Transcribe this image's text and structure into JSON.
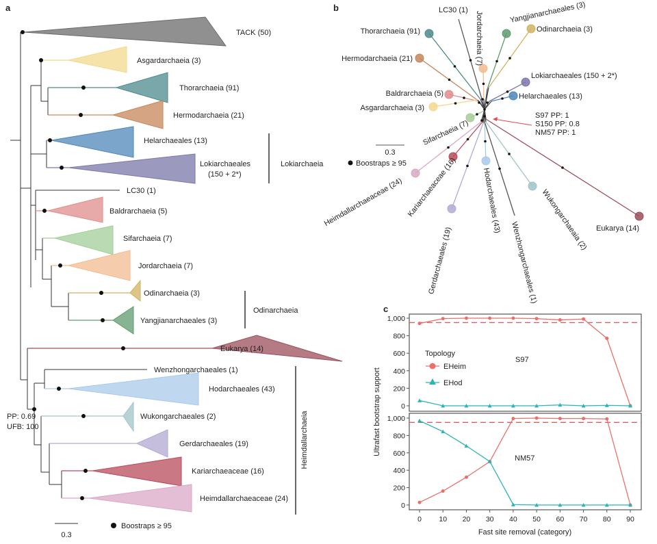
{
  "panel_a": {
    "letter": "a",
    "clades": [
      {
        "label": "TACK (50)",
        "color": "#6b6b6b"
      },
      {
        "label": "Asgardarchaeia (3)",
        "color": "#f2d98e"
      },
      {
        "label": "Thorarchaeia (91)",
        "color": "#4e8a8c"
      },
      {
        "label": "Hermodarchaeia (21)",
        "color": "#c6865a"
      },
      {
        "label": "Helarchaeales (13)",
        "color": "#4f87b9"
      },
      {
        "label": "Lokiarchaeales",
        "label2": "(150 + 2*)",
        "color": "#7b77a9"
      },
      {
        "label": "Baldrarchaeia (5)",
        "color": "#e08c8c"
      },
      {
        "label": "Sifarchaeia (7)",
        "color": "#a3cd99"
      },
      {
        "label": "Jordarchaeia (7)",
        "color": "#f1bc90"
      },
      {
        "label": "Odinarchaeia (3)",
        "color": "#d2b263"
      },
      {
        "label": "Yangjianarchaeales (3)",
        "color": "#5f9b6d"
      },
      {
        "label": "Eukarya (14)",
        "color": "#9c4f5b"
      },
      {
        "label": "Hodarchaeales (43)",
        "color": "#a9c9ea"
      },
      {
        "label": "Wukongarchaeales (2)",
        "color": "#a0c4c7"
      },
      {
        "label": "Gerdarchaeales (19)",
        "color": "#b2aad2"
      },
      {
        "label": "Kariarchaeaceae (16)",
        "color": "#b84b5b"
      },
      {
        "label": "Heimdallarchaeaceae (24)",
        "color": "#d9a8c6"
      }
    ],
    "singletons": [
      "LC30 (1)",
      "Wenzhongarchaeales (1)"
    ],
    "brackets": [
      "Lokiarchaeia",
      "Odinarchaeia",
      "Heimdallarchaeia"
    ],
    "node_support": [
      "PP: 0.69",
      "UFB: 100"
    ],
    "scale": "0.3",
    "legend": "Boostraps ≥ 95"
  },
  "panel_b": {
    "letter": "b",
    "tips": [
      {
        "label": "Thorarchaeia (91)",
        "color": "#4e8a8c"
      },
      {
        "label": "Hermodarchaeia (21)",
        "color": "#c6865a"
      },
      {
        "label": "LC30 (1)",
        "color": "#555555"
      },
      {
        "label": "Jordarchaeia (7)",
        "color": "#f1bc90"
      },
      {
        "label": "Yangjianarchaeales (3)",
        "color": "#5f9b6d"
      },
      {
        "label": "Odinarchaeia (3)",
        "color": "#d2b263"
      },
      {
        "label": "Lokiarchaeales (150 + 2*)",
        "color": "#7b77a9"
      },
      {
        "label": "Helarchaeales (13)",
        "color": "#4f87b9"
      },
      {
        "label": "Baldrarchaeia (5)",
        "color": "#e08c8c"
      },
      {
        "label": "Asgardarchaeia (3)",
        "color": "#f2d98e"
      },
      {
        "label": "Sifarchaeia (7)",
        "color": "#a3cd99"
      },
      {
        "label": "Heimdallarchaeaceae (24)",
        "color": "#d9a8c6"
      },
      {
        "label": "Kariarchaeaceae (16)",
        "color": "#b84b5b"
      },
      {
        "label": "Gerdarchaeales (19)",
        "color": "#b2aad2"
      },
      {
        "label": "Hodarchaeales (43)",
        "color": "#a9c9ea"
      },
      {
        "label": "Wenzhongarchaeales (1)",
        "color": "#555555"
      },
      {
        "label": "Wukongarchaeaia (2)",
        "color": "#a0c4c7"
      },
      {
        "label": "Eukarya (14)",
        "color": "#9c4f5b"
      }
    ],
    "annotation": [
      "S97    PP: 1",
      "S150  PP: 0.8",
      "NM57 PP: 1"
    ],
    "scale": "0.3",
    "legend": "Boostraps ≥ 95"
  },
  "chart_data": {
    "type": "line",
    "letter": "c",
    "xlabel": "Fast site removal (category)",
    "ylabel": "Ultrafast bootstrap support",
    "x": [
      0,
      10,
      20,
      30,
      40,
      50,
      60,
      70,
      80,
      90
    ],
    "yticks": [
      "0",
      "200",
      "400",
      "600",
      "800",
      "1,000"
    ],
    "ylim": [
      0,
      1000
    ],
    "threshold": 950,
    "legend_title": "Topology",
    "legend_position": "left",
    "panels": [
      {
        "name": "S97",
        "series": [
          {
            "name": "EHeim",
            "color": "#e8716b",
            "values": [
              940,
              995,
              1000,
              1000,
              1000,
              995,
              980,
              990,
              770,
              0
            ]
          },
          {
            "name": "EHod",
            "color": "#2bb5b5",
            "values": [
              60,
              0,
              0,
              0,
              0,
              0,
              10,
              0,
              5,
              0
            ]
          }
        ]
      },
      {
        "name": "NM57",
        "series": [
          {
            "name": "EHeim",
            "color": "#e8716b",
            "values": [
              30,
              160,
              320,
              500,
              995,
              1000,
              995,
              995,
              990,
              0
            ]
          },
          {
            "name": "EHod",
            "color": "#2bb5b5",
            "values": [
              970,
              845,
              680,
              500,
              5,
              0,
              0,
              0,
              0,
              0
            ]
          }
        ]
      }
    ]
  }
}
